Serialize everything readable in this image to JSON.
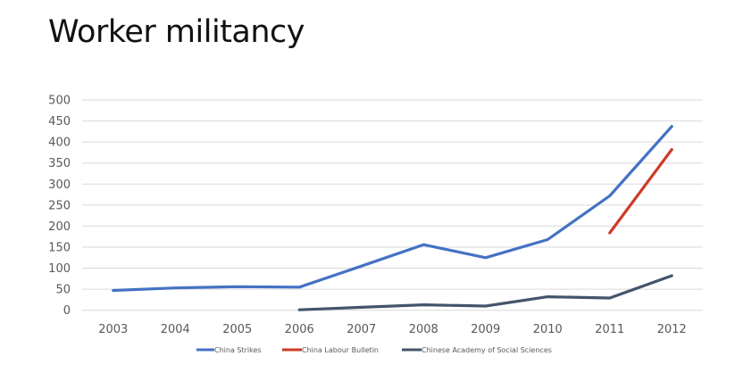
{
  "title": "Worker militancy",
  "chart_data": {
    "type": "line",
    "title": "Worker militancy",
    "xlabel": "",
    "ylabel": "",
    "categories": [
      "2003",
      "2004",
      "2005",
      "2006",
      "2007",
      "2008",
      "2009",
      "2010",
      "2011",
      "2012"
    ],
    "ylim": [
      0,
      500
    ],
    "yticks": [
      0,
      50,
      100,
      150,
      200,
      250,
      300,
      350,
      400,
      450,
      500
    ],
    "grid": true,
    "legend_position": "bottom",
    "series": [
      {
        "name": "China Strikes",
        "color": "#4472C4",
        "values": [
          47,
          53,
          56,
          55,
          105,
          156,
          125,
          168,
          272,
          437
        ]
      },
      {
        "name": "China Labour Bulletin",
        "color": "#CC3A26",
        "values": [
          null,
          null,
          null,
          null,
          null,
          null,
          null,
          null,
          184,
          382
        ]
      },
      {
        "name": "Chinese Academy of Social Sciences",
        "color": "#44546A",
        "values": [
          null,
          null,
          null,
          1,
          7,
          13,
          10,
          32,
          29,
          82
        ]
      }
    ]
  }
}
